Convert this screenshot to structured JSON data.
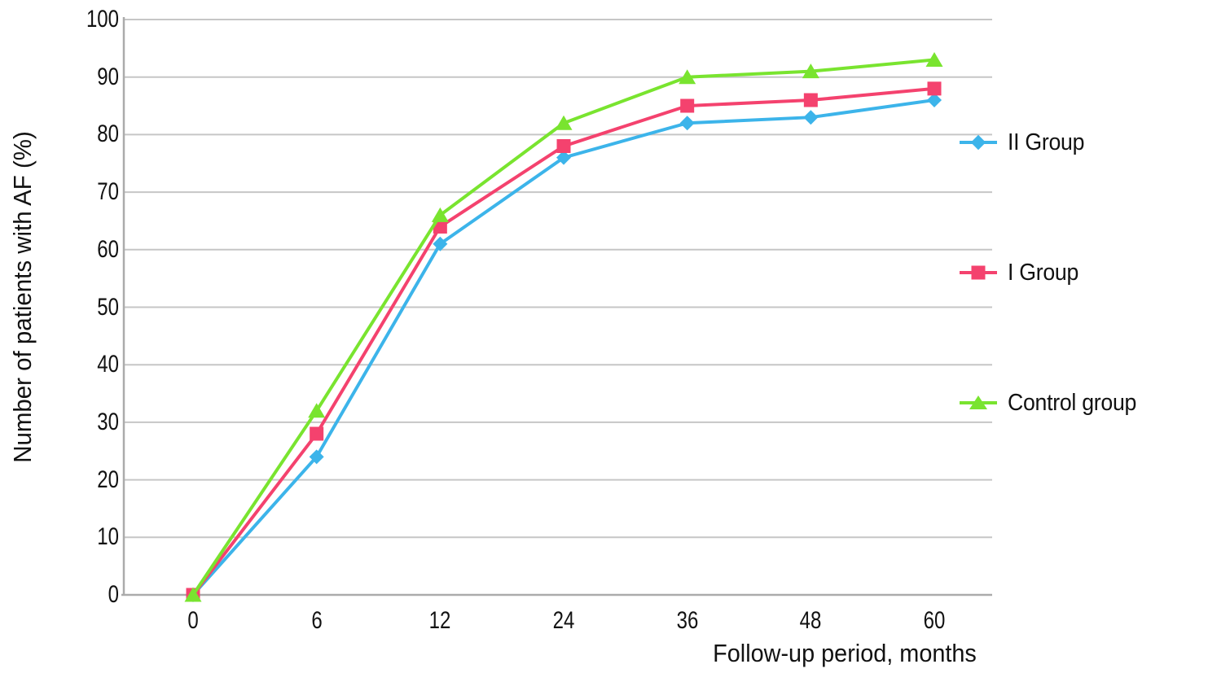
{
  "chart_data": {
    "type": "line",
    "title": "",
    "xlabel": "Follow-up period, months",
    "ylabel": "Number of patients with AF (%)",
    "categories": [
      "0",
      "6",
      "12",
      "24",
      "36",
      "48",
      "60"
    ],
    "y_ticks": [
      0,
      10,
      20,
      30,
      40,
      50,
      60,
      70,
      80,
      90,
      100
    ],
    "ylim": [
      0,
      100
    ],
    "grid": "horizontal",
    "legend_position": "right",
    "series": [
      {
        "name": "II Group",
        "marker": "diamond",
        "color": "#3cb4ea",
        "values": [
          0,
          24,
          61,
          76,
          82,
          83,
          86
        ]
      },
      {
        "name": "I Group",
        "marker": "square",
        "color": "#f4426e",
        "values": [
          0,
          28,
          64,
          78,
          85,
          86,
          88
        ]
      },
      {
        "name": "Control group",
        "marker": "triangle",
        "color": "#79e42f",
        "values": [
          0,
          32,
          66,
          82,
          90,
          91,
          93
        ]
      }
    ]
  },
  "colors": {
    "gridline": "#c6c6c6",
    "axis": "#ababab",
    "text": "#121212",
    "background": "#ffffff"
  }
}
